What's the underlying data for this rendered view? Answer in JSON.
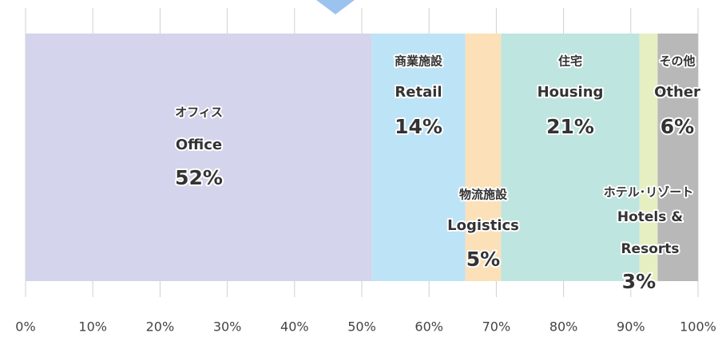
{
  "chart_data": {
    "type": "stacked_bar_h",
    "series": [
      {
        "name": "オフィス",
        "name_en": "Office",
        "color": "#d4d4ec",
        "values": [
          51.5
        ],
        "value_labels": [
          "52%"
        ]
      },
      {
        "name": "商業施設",
        "name_en": "Retail",
        "color": "#bde3f6",
        "values": [
          13.9
        ],
        "value_labels": [
          "14%"
        ]
      },
      {
        "name": "物流施設",
        "name_en": "Logistics",
        "color": "#fbe0b8",
        "values": [
          5.3
        ],
        "value_labels": [
          "5%"
        ]
      },
      {
        "name": "住宅",
        "name_en": "Housing",
        "color": "#bfe5e0",
        "values": [
          20.6
        ],
        "value_labels": [
          "21%"
        ]
      },
      {
        "name": "ホテル･リゾート",
        "name_en": "Hotels & Resorts",
        "color": "#e6efc2",
        "values": [
          2.7
        ],
        "value_labels": [
          "3%"
        ]
      },
      {
        "name": "その他",
        "name_en": "Other",
        "color": "#b8b8b8",
        "values": [
          6.0
        ],
        "value_labels": [
          "6%"
        ]
      }
    ],
    "xlim": [
      0,
      100
    ],
    "xticks": [
      {
        "value": 0,
        "label": "0%"
      },
      {
        "value": 10,
        "label": "10%"
      },
      {
        "value": 20,
        "label": "20%"
      },
      {
        "value": 30,
        "label": "30%"
      },
      {
        "value": 40,
        "label": "40%"
      },
      {
        "value": 50,
        "label": "50%"
      },
      {
        "value": 60,
        "label": "60%"
      },
      {
        "value": 70,
        "label": "70%"
      },
      {
        "value": 80,
        "label": "80%"
      },
      {
        "value": 90,
        "label": "90%"
      },
      {
        "value": 100,
        "label": "100%"
      }
    ],
    "grid": true
  }
}
